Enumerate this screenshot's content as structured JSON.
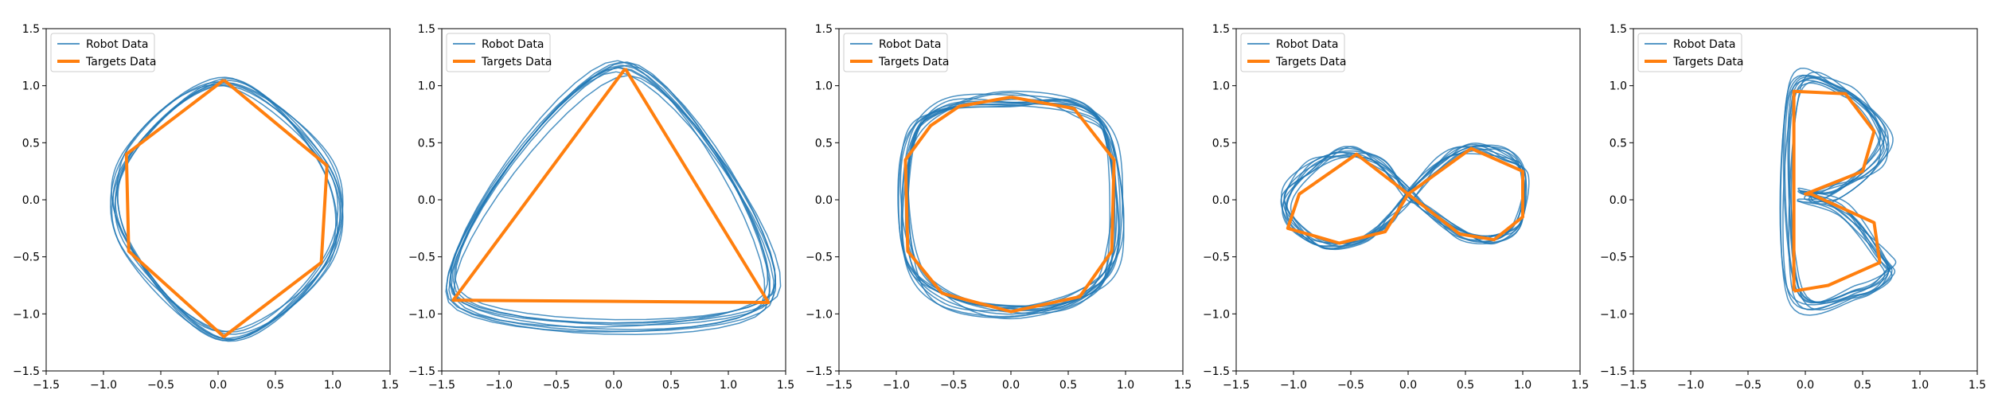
{
  "colors": {
    "robot": "#1f77b4",
    "target": "#ff7f0e"
  },
  "chart_data": [
    {
      "type": "line",
      "xlim": [
        -1.5,
        1.5
      ],
      "ylim": [
        -1.5,
        1.5
      ],
      "xticks": [
        "−1.5",
        "−1.0",
        "−0.5",
        "0.0",
        "0.5",
        "1.0",
        "1.5"
      ],
      "yticks": [
        "−1.5",
        "−1.0",
        "−0.5",
        "0.0",
        "0.5",
        "1.0",
        "1.5"
      ],
      "legend": {
        "placement": "top-left",
        "entries": [
          "Robot Data",
          "Targets Data"
        ]
      },
      "series": [
        {
          "name": "Robot Data",
          "loops": 8,
          "spread": 0.06,
          "x": [
            0.05,
            0.95,
            0.95,
            0.05,
            -0.8,
            -0.8,
            0.05
          ],
          "y": [
            1.05,
            0.3,
            -0.55,
            -1.2,
            -0.4,
            0.4,
            1.05
          ]
        },
        {
          "name": "Targets Data",
          "x": [
            0.05,
            0.95,
            0.9,
            0.05,
            -0.78,
            -0.8,
            0.05
          ],
          "y": [
            1.05,
            0.3,
            -0.55,
            -1.2,
            -0.45,
            0.4,
            1.05
          ]
        }
      ]
    },
    {
      "type": "line",
      "xlim": [
        -1.5,
        1.5
      ],
      "ylim": [
        -1.5,
        1.5
      ],
      "xticks": [
        "−1.5",
        "−1.0",
        "−0.5",
        "0.0",
        "0.5",
        "1.0",
        "1.5"
      ],
      "yticks": [
        "−1.5",
        "−1.0",
        "−0.5",
        "0.0",
        "0.5",
        "1.0",
        "1.5"
      ],
      "legend": {
        "placement": "top-left",
        "entries": [
          "Robot Data",
          "Targets Data"
        ]
      },
      "series": [
        {
          "name": "Robot Data",
          "loops": 9,
          "spread": 0.08,
          "x": [
            0.1,
            1.35,
            -1.4,
            0.1
          ],
          "y": [
            1.15,
            -0.88,
            -0.87,
            1.15
          ]
        },
        {
          "name": "Targets Data",
          "x": [
            0.1,
            1.35,
            -1.4,
            0.1
          ],
          "y": [
            1.15,
            -0.9,
            -0.88,
            1.15
          ]
        }
      ]
    },
    {
      "type": "line",
      "xlim": [
        -1.5,
        1.5
      ],
      "ylim": [
        -1.5,
        1.5
      ],
      "xticks": [
        "−1.5",
        "−1.0",
        "−0.5",
        "0.0",
        "0.5",
        "1.0",
        "1.5"
      ],
      "yticks": [
        "−1.5",
        "−1.0",
        "−0.5",
        "0.0",
        "0.5",
        "1.0",
        "1.5"
      ],
      "legend": {
        "placement": "top-left",
        "entries": [
          "Robot Data",
          "Targets Data"
        ]
      },
      "series": [
        {
          "name": "Robot Data",
          "loops": 12,
          "spread": 0.07,
          "x": [
            0.0,
            0.6,
            0.9,
            0.9,
            0.6,
            0.0,
            -0.6,
            -0.9,
            -0.9,
            -0.6,
            0.0
          ],
          "y": [
            0.88,
            0.8,
            0.45,
            -0.45,
            -0.85,
            -0.98,
            -0.85,
            -0.45,
            0.45,
            0.8,
            0.88
          ]
        },
        {
          "name": "Targets Data",
          "x": [
            0.0,
            0.55,
            0.9,
            0.88,
            0.6,
            0.0,
            -0.6,
            -0.9,
            -0.92,
            -0.7,
            -0.45,
            0.0
          ],
          "y": [
            0.9,
            0.8,
            0.35,
            -0.45,
            -0.85,
            -0.98,
            -0.82,
            -0.45,
            0.35,
            0.65,
            0.82,
            0.9
          ]
        }
      ]
    },
    {
      "type": "line",
      "xlim": [
        -1.5,
        1.5
      ],
      "ylim": [
        -1.5,
        1.5
      ],
      "xticks": [
        "−1.5",
        "−1.0",
        "−0.5",
        "0.0",
        "0.5",
        "1.0",
        "1.5"
      ],
      "yticks": [
        "−1.5",
        "−1.0",
        "−0.5",
        "0.0",
        "0.5",
        "1.0",
        "1.5"
      ],
      "legend": {
        "placement": "top-left",
        "entries": [
          "Robot Data",
          "Targets Data"
        ]
      },
      "series": [
        {
          "name": "Robot Data",
          "loops": 10,
          "spread": 0.05,
          "x": [
            0.0,
            0.3,
            0.55,
            0.85,
            1.0,
            0.95,
            0.75,
            0.45,
            0.15,
            0.0,
            -0.25,
            -0.55,
            -0.85,
            -1.05,
            -1.0,
            -0.75,
            -0.4,
            -0.15,
            0.0
          ],
          "y": [
            0.05,
            0.35,
            0.45,
            0.4,
            0.2,
            -0.2,
            -0.35,
            -0.3,
            -0.1,
            0.05,
            0.3,
            0.42,
            0.3,
            0.05,
            -0.2,
            -0.4,
            -0.35,
            -0.15,
            0.05
          ]
        },
        {
          "name": "Targets Data",
          "x": [
            0.0,
            0.55,
            1.0,
            1.0,
            0.75,
            0.45,
            0.0,
            -0.45,
            -0.95,
            -1.05,
            -0.6,
            -0.2,
            0.0
          ],
          "y": [
            0.05,
            0.45,
            0.25,
            -0.15,
            -0.35,
            -0.3,
            0.05,
            0.4,
            0.05,
            -0.25,
            -0.38,
            -0.28,
            0.05
          ]
        }
      ]
    },
    {
      "type": "line",
      "xlim": [
        -1.5,
        1.5
      ],
      "ylim": [
        -1.5,
        1.5
      ],
      "xticks": [
        "−1.5",
        "−1.0",
        "−0.5",
        "0.0",
        "0.5",
        "1.0",
        "1.5"
      ],
      "yticks": [
        "−1.5",
        "−1.0",
        "−0.5",
        "0.0",
        "0.5",
        "1.0",
        "1.5"
      ],
      "legend": {
        "placement": "top-left",
        "entries": [
          "Robot Data",
          "Targets Data"
        ]
      },
      "series": [
        {
          "name": "Robot Data",
          "loops": 10,
          "spread": 0.07,
          "x": [
            -0.1,
            -0.1,
            0.35,
            0.7,
            0.6,
            0.2,
            0.0,
            0.35,
            0.65,
            0.7,
            0.45,
            -0.1
          ],
          "y": [
            -0.8,
            0.95,
            0.95,
            0.6,
            0.3,
            0.05,
            0.05,
            -0.1,
            -0.5,
            -0.65,
            -0.8,
            -0.8
          ]
        },
        {
          "name": "Targets Data",
          "x": [
            -0.1,
            -0.1,
            0.35,
            0.6,
            0.5,
            0.0,
            0.05,
            0.6,
            0.65,
            0.2,
            -0.1
          ],
          "y": [
            -0.8,
            0.95,
            0.93,
            0.6,
            0.25,
            0.05,
            0.05,
            -0.2,
            -0.55,
            -0.75,
            -0.8
          ]
        }
      ]
    }
  ]
}
